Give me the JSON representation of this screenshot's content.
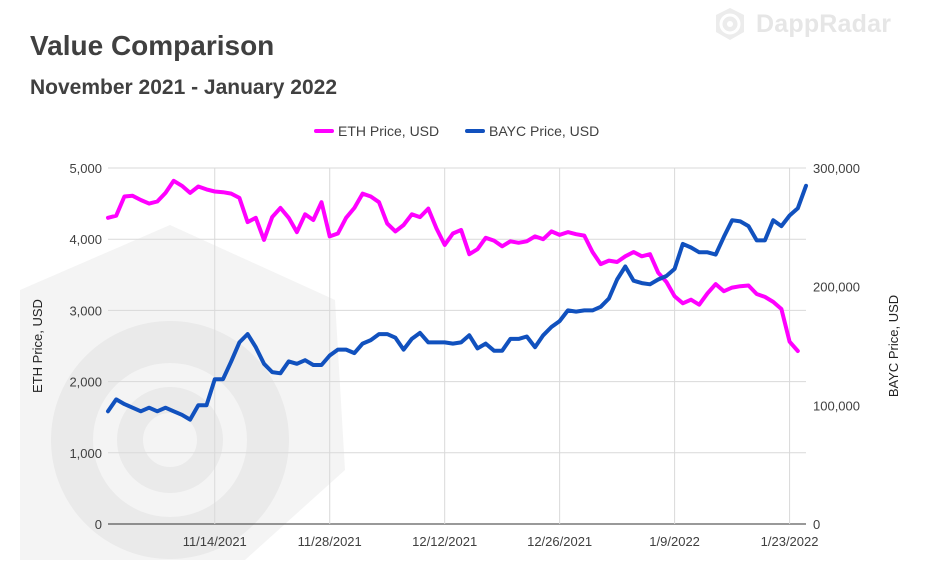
{
  "brand": {
    "name": "DappRadar",
    "icon": "dappradar-logo-icon"
  },
  "chart_data": {
    "type": "line",
    "title": "Value Comparison",
    "subtitle": "November 2021 - January 2022",
    "legend_position": "top-center",
    "grid": true,
    "x": {
      "type": "date",
      "range": [
        "2021-11-01",
        "2022-01-25"
      ],
      "ticks": [
        "2021-11-14",
        "2021-11-28",
        "2021-12-12",
        "2021-12-26",
        "2022-01-09",
        "2022-01-23"
      ],
      "tick_labels": [
        "11/14/2021",
        "11/28/2021",
        "12/12/2021",
        "12/26/2021",
        "1/9/2022",
        "1/23/2022"
      ]
    },
    "y_left": {
      "label": "ETH Price, USD",
      "ylim": [
        0,
        5000
      ],
      "ticks": [
        0,
        1000,
        2000,
        3000,
        4000,
        5000
      ],
      "tick_labels": [
        "0",
        "1,000",
        "2,000",
        "3,000",
        "4,000",
        "5,000"
      ]
    },
    "y_right": {
      "label": "BAYC Price, USD",
      "ylim": [
        0,
        300000
      ],
      "ticks": [
        0,
        100000,
        200000,
        300000
      ],
      "tick_labels": [
        "0",
        "100,000",
        "200,000",
        "300,000"
      ]
    },
    "series": [
      {
        "name": "ETH Price, USD",
        "axis": "left",
        "color": "#ff00ff",
        "x": [
          "2021-11-01",
          "2021-11-02",
          "2021-11-03",
          "2021-11-04",
          "2021-11-05",
          "2021-11-06",
          "2021-11-07",
          "2021-11-08",
          "2021-11-09",
          "2021-11-10",
          "2021-11-11",
          "2021-11-12",
          "2021-11-13",
          "2021-11-14",
          "2021-11-15",
          "2021-11-16",
          "2021-11-17",
          "2021-11-18",
          "2021-11-19",
          "2021-11-20",
          "2021-11-21",
          "2021-11-22",
          "2021-11-23",
          "2021-11-24",
          "2021-11-25",
          "2021-11-26",
          "2021-11-27",
          "2021-11-28",
          "2021-11-29",
          "2021-11-30",
          "2021-12-01",
          "2021-12-02",
          "2021-12-03",
          "2021-12-04",
          "2021-12-05",
          "2021-12-06",
          "2021-12-07",
          "2021-12-08",
          "2021-12-09",
          "2021-12-10",
          "2021-12-11",
          "2021-12-12",
          "2021-12-13",
          "2021-12-14",
          "2021-12-15",
          "2021-12-16",
          "2021-12-17",
          "2021-12-18",
          "2021-12-19",
          "2021-12-20",
          "2021-12-21",
          "2021-12-22",
          "2021-12-23",
          "2021-12-24",
          "2021-12-25",
          "2021-12-26",
          "2021-12-27",
          "2021-12-28",
          "2021-12-29",
          "2021-12-30",
          "2021-12-31",
          "2022-01-01",
          "2022-01-02",
          "2022-01-03",
          "2022-01-04",
          "2022-01-05",
          "2022-01-06",
          "2022-01-07",
          "2022-01-08",
          "2022-01-09",
          "2022-01-10",
          "2022-01-11",
          "2022-01-12",
          "2022-01-13",
          "2022-01-14",
          "2022-01-15",
          "2022-01-16",
          "2022-01-17",
          "2022-01-18",
          "2022-01-19",
          "2022-01-20",
          "2022-01-21",
          "2022-01-22",
          "2022-01-23",
          "2022-01-24"
        ],
        "values": [
          4300,
          4330,
          4600,
          4610,
          4550,
          4500,
          4530,
          4650,
          4820,
          4750,
          4650,
          4740,
          4700,
          4670,
          4660,
          4640,
          4580,
          4240,
          4300,
          3990,
          4310,
          4440,
          4300,
          4100,
          4350,
          4270,
          4520,
          4040,
          4080,
          4300,
          4440,
          4640,
          4600,
          4520,
          4220,
          4110,
          4200,
          4350,
          4310,
          4430,
          4150,
          3920,
          4080,
          4130,
          3790,
          3860,
          4020,
          3980,
          3900,
          3970,
          3950,
          3970,
          4040,
          4000,
          4110,
          4060,
          4100,
          4070,
          4050,
          3820,
          3650,
          3700,
          3680,
          3760,
          3820,
          3760,
          3790,
          3530,
          3400,
          3200,
          3100,
          3150,
          3080,
          3240,
          3370,
          3270,
          3320,
          3340,
          3350,
          3230,
          3190,
          3120,
          3020,
          2560,
          2430
        ]
      },
      {
        "name": "BAYC Price, USD",
        "axis": "right",
        "color": "#1151be",
        "x": [
          "2021-11-01",
          "2021-11-02",
          "2021-11-03",
          "2021-11-04",
          "2021-11-05",
          "2021-11-06",
          "2021-11-07",
          "2021-11-08",
          "2021-11-09",
          "2021-11-10",
          "2021-11-11",
          "2021-11-12",
          "2021-11-13",
          "2021-11-14",
          "2021-11-15",
          "2021-11-16",
          "2021-11-17",
          "2021-11-18",
          "2021-11-19",
          "2021-11-20",
          "2021-11-21",
          "2021-11-22",
          "2021-11-23",
          "2021-11-24",
          "2021-11-25",
          "2021-11-26",
          "2021-11-27",
          "2021-11-28",
          "2021-11-29",
          "2021-11-30",
          "2021-12-01",
          "2021-12-02",
          "2021-12-03",
          "2021-12-04",
          "2021-12-05",
          "2021-12-06",
          "2021-12-07",
          "2021-12-08",
          "2021-12-09",
          "2021-12-10",
          "2021-12-11",
          "2021-12-12",
          "2021-12-13",
          "2021-12-14",
          "2021-12-15",
          "2021-12-16",
          "2021-12-17",
          "2021-12-18",
          "2021-12-19",
          "2021-12-20",
          "2021-12-21",
          "2021-12-22",
          "2021-12-23",
          "2021-12-24",
          "2021-12-25",
          "2021-12-26",
          "2021-12-27",
          "2021-12-28",
          "2021-12-29",
          "2021-12-30",
          "2021-12-31",
          "2022-01-01",
          "2022-01-02",
          "2022-01-03",
          "2022-01-04",
          "2022-01-05",
          "2022-01-06",
          "2022-01-07",
          "2022-01-08",
          "2022-01-09",
          "2022-01-10",
          "2022-01-11",
          "2022-01-12",
          "2022-01-13",
          "2022-01-14",
          "2022-01-15",
          "2022-01-16",
          "2022-01-17",
          "2022-01-18",
          "2022-01-19",
          "2022-01-20",
          "2022-01-21",
          "2022-01-22",
          "2022-01-23",
          "2022-01-24",
          "2022-01-25"
        ],
        "values": [
          95000,
          105000,
          101000,
          98000,
          95000,
          98000,
          95000,
          98000,
          95000,
          92000,
          88000,
          100000,
          100000,
          122000,
          122000,
          137000,
          153000,
          160000,
          149000,
          135000,
          128000,
          127000,
          137000,
          135000,
          138000,
          134000,
          134000,
          142000,
          147000,
          147000,
          144000,
          152000,
          155000,
          160000,
          160000,
          157000,
          147000,
          156000,
          161000,
          153000,
          153000,
          153000,
          152000,
          153000,
          159000,
          148000,
          152000,
          146000,
          146000,
          156000,
          156000,
          158000,
          149000,
          159000,
          166000,
          171000,
          180000,
          179000,
          180000,
          180000,
          183000,
          190000,
          206000,
          217000,
          205000,
          203000,
          202000,
          206000,
          209000,
          215000,
          236000,
          233000,
          229000,
          229000,
          227000,
          242000,
          256000,
          255000,
          251000,
          239000,
          239000,
          256000,
          251000,
          260000,
          266000,
          285000
        ]
      }
    ]
  }
}
